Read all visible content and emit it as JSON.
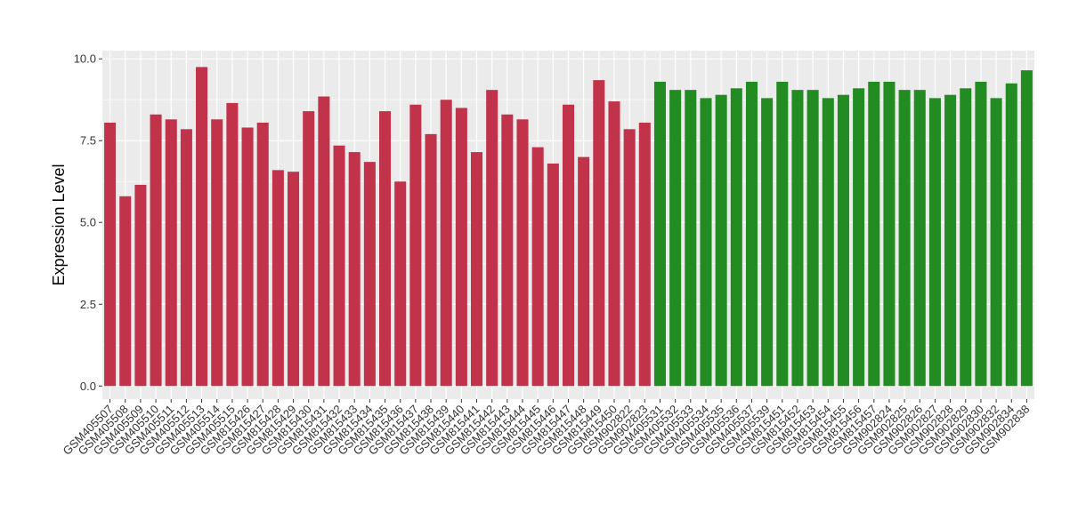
{
  "chart_data": {
    "type": "bar",
    "y_label": "Expression Level",
    "categories": [
      "GSM405507",
      "GSM405508",
      "GSM405509",
      "GSM405510",
      "GSM405511",
      "GSM405512",
      "GSM405513",
      "GSM405514",
      "GSM405515",
      "GSM815426",
      "GSM815427",
      "GSM815428",
      "GSM815429",
      "GSM815430",
      "GSM815431",
      "GSM815432",
      "GSM815433",
      "GSM815434",
      "GSM815435",
      "GSM815436",
      "GSM815437",
      "GSM815438",
      "GSM815439",
      "GSM815440",
      "GSM815441",
      "GSM815442",
      "GSM815443",
      "GSM815444",
      "GSM815445",
      "GSM815446",
      "GSM815447",
      "GSM815448",
      "GSM815449",
      "GSM815450",
      "GSM902822",
      "GSM902823",
      "GSM405531",
      "GSM405532",
      "GSM405533",
      "GSM405534",
      "GSM405535",
      "GSM405536",
      "GSM405537",
      "GSM405539",
      "GSM815451",
      "GSM815452",
      "GSM815453",
      "GSM815454",
      "GSM815455",
      "GSM815456",
      "GSM815457",
      "GSM902824",
      "GSM902825",
      "GSM902826",
      "GSM902827",
      "GSM902828",
      "GSM902829",
      "GSM902830",
      "GSM902832",
      "GSM902834",
      "GSM902838"
    ],
    "series": [
      {
        "color": "#c0334a",
        "values": [
          8.05,
          5.8,
          6.15,
          8.3,
          8.15,
          7.85,
          9.75,
          8.15,
          8.65,
          7.9,
          8.05,
          6.6,
          6.55,
          8.4,
          8.85,
          7.35,
          7.15,
          6.85,
          8.4,
          6.25,
          8.6,
          7.7,
          8.75,
          8.5,
          7.15,
          9.05,
          8.3,
          8.15,
          7.3,
          6.8,
          8.6,
          7.0,
          9.35,
          8.7,
          7.85,
          8.05,
          null,
          null,
          null,
          null,
          null,
          null,
          null,
          null,
          null,
          null,
          null,
          null,
          null,
          null,
          null,
          null,
          null,
          null,
          null,
          null,
          null,
          null,
          null,
          null,
          null
        ]
      },
      {
        "color": "#228b22",
        "values": [
          null,
          null,
          null,
          null,
          null,
          null,
          null,
          null,
          null,
          null,
          null,
          null,
          null,
          null,
          null,
          null,
          null,
          null,
          null,
          null,
          null,
          null,
          null,
          null,
          null,
          null,
          null,
          null,
          null,
          null,
          null,
          null,
          null,
          null,
          null,
          null,
          9.3,
          9.05,
          9.05,
          8.8,
          8.9,
          9.1,
          9.3,
          8.8,
          9.3,
          9.05,
          9.05,
          8.8,
          8.9,
          9.1,
          9.3,
          9.3,
          9.05,
          9.05,
          8.8,
          8.9,
          9.1,
          9.3,
          8.8,
          9.25,
          9.65
        ]
      }
    ],
    "ylim": [
      -0.4,
      10.25
    ],
    "yticks": [
      {
        "value": 0,
        "label": "0.0"
      },
      2.5,
      {
        "value": 5,
        "label": "5.0"
      },
      7.5,
      {
        "value": 10,
        "label": "10.0"
      }
    ],
    "grid": true
  }
}
